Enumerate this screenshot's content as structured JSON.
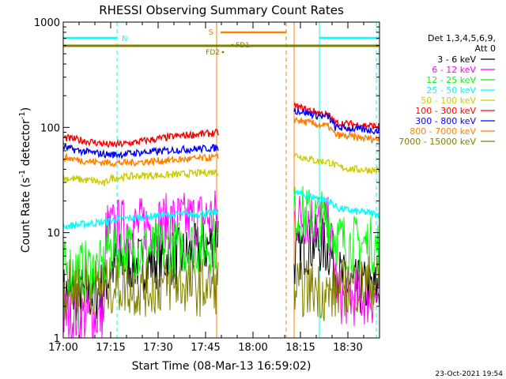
{
  "chart_data": {
    "type": "line",
    "title": "RHESSI Observing Summary Count Rates",
    "xlabel": "Start Time (08-Mar-13 16:59:02)",
    "ylabel_main": "Count Rate (s",
    "ylabel_sup1": "-1",
    "ylabel_mid": " detector",
    "ylabel_sup2": "-1",
    "ylabel_end": ")",
    "x_unit": "minutes after 17:00 UT",
    "xlim": [
      0,
      100
    ],
    "ylim": [
      1,
      1000
    ],
    "y_scale": "log",
    "x_ticks": [
      {
        "value": 0,
        "label": "17:00"
      },
      {
        "value": 15,
        "label": "17:15"
      },
      {
        "value": 30,
        "label": "17:30"
      },
      {
        "value": 45,
        "label": "17:45"
      },
      {
        "value": 60,
        "label": "18:00"
      },
      {
        "value": 75,
        "label": "18:15"
      },
      {
        "value": 90,
        "label": "18:30"
      }
    ],
    "y_ticks": [
      {
        "value": 1,
        "label": "1"
      },
      {
        "value": 10,
        "label": "10"
      },
      {
        "value": 100,
        "label": "100"
      },
      {
        "value": 1000,
        "label": "1000"
      }
    ],
    "legend_header": [
      "Det 1,3,4,5,6,9,",
      "Att 0"
    ],
    "legend_position": "right",
    "timestamp": "23-Oct-2021 19:54",
    "segments": [
      [
        0,
        49
      ],
      [
        73,
        100
      ]
    ],
    "series": [
      {
        "name": "3 - 6 keV",
        "color": "#000000",
        "points": [
          [
            0,
            2.6
          ],
          [
            10,
            2.6
          ],
          [
            13,
            3.1
          ],
          [
            15,
            4.5
          ],
          [
            18,
            5.5
          ],
          [
            22,
            5.2
          ],
          [
            26,
            5.0
          ],
          [
            30,
            5.6
          ],
          [
            34,
            5.8
          ],
          [
            38,
            6.0
          ],
          [
            42,
            6.5
          ],
          [
            46,
            7.5
          ],
          [
            49,
            10.5
          ],
          [
            73,
            5.5
          ],
          [
            76,
            7.2
          ],
          [
            80,
            8.0
          ],
          [
            84,
            6.8
          ],
          [
            88,
            3.5
          ],
          [
            92,
            3.0
          ],
          [
            100,
            2.9
          ]
        ]
      },
      {
        "name": "6 - 12 keV",
        "color": "#ff00ff",
        "points": [
          [
            0,
            1.6
          ],
          [
            13,
            1.6
          ],
          [
            13.5,
            10.5
          ],
          [
            18,
            11.5
          ],
          [
            22,
            11.2
          ],
          [
            26,
            12.0
          ],
          [
            30,
            12.2
          ],
          [
            34,
            12.8
          ],
          [
            38,
            13.0
          ],
          [
            42,
            13.5
          ],
          [
            46,
            14.0
          ],
          [
            49,
            14.5
          ],
          [
            73,
            13.5
          ],
          [
            76,
            14.0
          ],
          [
            80,
            13.0
          ],
          [
            84,
            11.5
          ],
          [
            87,
            2.5
          ],
          [
            92,
            2.4
          ],
          [
            100,
            2.4
          ]
        ]
      },
      {
        "name": "12 - 25 keV",
        "color": "#00ff00",
        "points": [
          [
            0,
            4.5
          ],
          [
            13,
            4.5
          ],
          [
            13.5,
            7.2
          ],
          [
            20,
            6.8
          ],
          [
            26,
            7.0
          ],
          [
            30,
            7.0
          ],
          [
            36,
            7.2
          ],
          [
            42,
            7.5
          ],
          [
            49,
            7.8
          ],
          [
            73,
            15.5
          ],
          [
            76,
            15.0
          ],
          [
            80,
            14.0
          ],
          [
            84,
            13.2
          ],
          [
            86,
            9.0
          ],
          [
            90,
            8.0
          ],
          [
            100,
            7.5
          ]
        ]
      },
      {
        "name": "25 - 50 keV",
        "color": "#00ffff",
        "points": [
          [
            0,
            11.5
          ],
          [
            4,
            11.8
          ],
          [
            8,
            12.2
          ],
          [
            13,
            12.6
          ],
          [
            18,
            13.5
          ],
          [
            24,
            14.0
          ],
          [
            30,
            14.5
          ],
          [
            36,
            14.8
          ],
          [
            42,
            15.0
          ],
          [
            49,
            15.5
          ],
          [
            73,
            24.0
          ],
          [
            76,
            23.0
          ],
          [
            80,
            21.5
          ],
          [
            84,
            20.0
          ],
          [
            87,
            17.0
          ],
          [
            92,
            16.0
          ],
          [
            100,
            15.0
          ]
        ]
      },
      {
        "name": "50 - 100 keV",
        "color": "#cccc00",
        "points": [
          [
            0,
            33
          ],
          [
            5,
            32
          ],
          [
            10,
            31
          ],
          [
            13,
            29
          ],
          [
            15,
            33
          ],
          [
            20,
            34
          ],
          [
            26,
            35
          ],
          [
            32,
            35
          ],
          [
            38,
            36
          ],
          [
            44,
            37
          ],
          [
            49,
            38
          ],
          [
            73,
            55
          ],
          [
            76,
            52
          ],
          [
            80,
            48
          ],
          [
            84,
            47
          ],
          [
            87,
            42
          ],
          [
            92,
            40
          ],
          [
            100,
            39
          ]
        ]
      },
      {
        "name": "100 - 300 keV",
        "color": "#ff0000",
        "points": [
          [
            0,
            80
          ],
          [
            5,
            76
          ],
          [
            10,
            72
          ],
          [
            15,
            68
          ],
          [
            20,
            70
          ],
          [
            25,
            74
          ],
          [
            30,
            78
          ],
          [
            35,
            82
          ],
          [
            40,
            85
          ],
          [
            45,
            87
          ],
          [
            49,
            89
          ],
          [
            73,
            160
          ],
          [
            76,
            150
          ],
          [
            80,
            140
          ],
          [
            84,
            130
          ],
          [
            86,
            110
          ],
          [
            90,
            108
          ],
          [
            95,
            105
          ],
          [
            100,
            102
          ]
        ]
      },
      {
        "name": "300 - 800 keV",
        "color": "#0000ff",
        "points": [
          [
            0,
            65
          ],
          [
            5,
            60
          ],
          [
            10,
            57
          ],
          [
            15,
            55
          ],
          [
            20,
            56
          ],
          [
            25,
            58
          ],
          [
            30,
            59
          ],
          [
            35,
            61
          ],
          [
            40,
            62
          ],
          [
            45,
            63
          ],
          [
            49,
            64
          ],
          [
            73,
            145
          ],
          [
            76,
            140
          ],
          [
            80,
            130
          ],
          [
            84,
            125
          ],
          [
            86,
            100
          ],
          [
            90,
            98
          ],
          [
            95,
            95
          ],
          [
            100,
            93
          ]
        ]
      },
      {
        "name": "800 - 7000 keV",
        "color": "#ff7f00",
        "points": [
          [
            0,
            52
          ],
          [
            5,
            49
          ],
          [
            10,
            47
          ],
          [
            15,
            46
          ],
          [
            20,
            46
          ],
          [
            25,
            47
          ],
          [
            30,
            48
          ],
          [
            35,
            49
          ],
          [
            40,
            50
          ],
          [
            45,
            51
          ],
          [
            49,
            52
          ],
          [
            73,
            120
          ],
          [
            76,
            113
          ],
          [
            80,
            107
          ],
          [
            84,
            102
          ],
          [
            86,
            85
          ],
          [
            90,
            82
          ],
          [
            95,
            79
          ],
          [
            100,
            77
          ]
        ]
      },
      {
        "name": "7000 - 15000 keV",
        "color": "#808000",
        "points": [
          [
            0,
            2.8
          ],
          [
            6,
            3.3
          ],
          [
            12,
            3.0
          ],
          [
            18,
            3.2
          ],
          [
            24,
            2.9
          ],
          [
            30,
            3.1
          ],
          [
            36,
            3.3
          ],
          [
            42,
            3.0
          ],
          [
            49,
            3.2
          ],
          [
            73,
            2.9
          ],
          [
            80,
            3.0
          ],
          [
            84,
            2.5
          ],
          [
            88,
            3.0
          ],
          [
            94,
            3.2
          ],
          [
            100,
            3.4
          ]
        ]
      }
    ],
    "annotations": {
      "night": [
        {
          "label": "N",
          "start": 0,
          "end": 17,
          "color": "#00ffff"
        },
        {
          "label": "",
          "start": 81,
          "end": 100,
          "color": "#00ffff"
        }
      ],
      "saa": [
        {
          "label": "S",
          "start": 48.5,
          "end": 70.5,
          "color": "#ff7f00"
        }
      ],
      "flare_bar": {
        "label": "",
        "start": 0,
        "end": 100,
        "color": "#808000"
      },
      "flare_markers": [
        {
          "label": "FD1",
          "x": 53.5,
          "color": "#808000"
        },
        {
          "label": "FD2",
          "x": 50.5,
          "color": "#808000"
        }
      ],
      "vlines": [
        {
          "x": 0,
          "color": "#00ffff",
          "dash": false
        },
        {
          "x": 17,
          "color": "#00ffff",
          "dash": true
        },
        {
          "x": 48.5,
          "color": "#ff7f00",
          "dash": false
        },
        {
          "x": 70.5,
          "color": "#ff7f00",
          "dash": true
        },
        {
          "x": 73,
          "color": "#ff7f00",
          "dash": false
        },
        {
          "x": 81,
          "color": "#00ffff",
          "dash": false
        },
        {
          "x": 99,
          "color": "#00ffff",
          "dash": true
        }
      ]
    }
  }
}
